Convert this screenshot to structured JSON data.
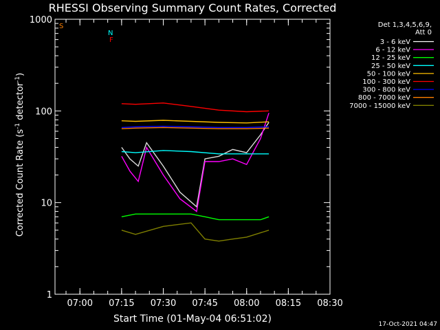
{
  "chart_data": {
    "type": "line",
    "title": "RHESSI Observing Summary Count Rates, Corrected",
    "xlabel": "Start Time (01-May-04 06:51:02)",
    "ylabel_main": "Corrected Count Rate (s",
    "ylabel_exp1": "-1",
    "ylabel_mid": " detector",
    "ylabel_exp2": "-1",
    "ylabel_end": ")",
    "y_scale": "log",
    "xlim": [
      "06:51:02",
      "08:30:00"
    ],
    "ylim": [
      1,
      1000
    ],
    "x_ticks": [
      "07:00",
      "07:15",
      "07:30",
      "07:45",
      "08:00",
      "08:15",
      "08:30"
    ],
    "y_ticks": [
      "1",
      "10",
      "100",
      "1000"
    ],
    "grid": false,
    "legend_position": "top-right",
    "legend_header": [
      "Det 1,3,4,5,6,9,",
      "Att 0"
    ],
    "series": [
      {
        "name": "3 - 6 keV",
        "color": "#000000",
        "times": [
          "07:15",
          "07:18",
          "07:21",
          "07:24",
          "07:30",
          "07:36",
          "07:42",
          "07:45",
          "07:50",
          "07:55",
          "08:00",
          "08:05",
          "08:08"
        ],
        "values": [
          40,
          30,
          25,
          45,
          25,
          13,
          9,
          30,
          32,
          38,
          35,
          55,
          75
        ]
      },
      {
        "name": "6 - 12 keV",
        "color": "#ff00ff",
        "times": [
          "07:15",
          "07:18",
          "07:21",
          "07:24",
          "07:30",
          "07:36",
          "07:42",
          "07:45",
          "07:50",
          "07:55",
          "08:00",
          "08:05",
          "08:08"
        ],
        "values": [
          32,
          22,
          17,
          40,
          20,
          11,
          8,
          28,
          28,
          30,
          26,
          50,
          95
        ]
      },
      {
        "name": "12 - 25 keV",
        "color": "#00ff00",
        "times": [
          "07:15",
          "07:20",
          "07:30",
          "07:40",
          "07:45",
          "07:50",
          "07:55",
          "08:00",
          "08:05",
          "08:08"
        ],
        "values": [
          7,
          7.5,
          7.5,
          7.5,
          7,
          6.5,
          6.5,
          6.5,
          6.5,
          7
        ]
      },
      {
        "name": "25 - 50 keV",
        "color": "#00ffff",
        "times": [
          "07:15",
          "07:20",
          "07:30",
          "07:40",
          "07:50",
          "08:00",
          "08:08"
        ],
        "values": [
          36,
          35,
          37,
          36,
          34,
          34,
          34
        ]
      },
      {
        "name": "50 - 100 keV",
        "color": "#ffc000",
        "times": [
          "07:15",
          "07:20",
          "07:30",
          "07:40",
          "07:50",
          "08:00",
          "08:08"
        ],
        "values": [
          78,
          77,
          79,
          77,
          75,
          74,
          76
        ]
      },
      {
        "name": "100 - 300 keV",
        "color": "#ff0000",
        "times": [
          "07:15",
          "07:20",
          "07:30",
          "07:40",
          "07:50",
          "08:00",
          "08:08"
        ],
        "values": [
          120,
          118,
          122,
          112,
          102,
          98,
          100
        ]
      },
      {
        "name": "300 - 800 keV",
        "color": "#0000ff",
        "times": [
          "07:15",
          "07:20",
          "07:30",
          "07:40",
          "07:50",
          "08:00",
          "08:08"
        ],
        "values": [
          66,
          67,
          68,
          67,
          66,
          66,
          67
        ]
      },
      {
        "name": "800 - 7000 keV",
        "color": "#ff8000",
        "times": [
          "07:15",
          "07:20",
          "07:30",
          "07:40",
          "07:50",
          "08:00",
          "08:08"
        ],
        "values": [
          64,
          65,
          66,
          65,
          64,
          64,
          65
        ]
      },
      {
        "name": "7000 - 15000 keV",
        "color": "#808000",
        "times": [
          "07:15",
          "07:20",
          "07:30",
          "07:40",
          "07:45",
          "07:50",
          "07:55",
          "08:00",
          "08:08"
        ],
        "values": [
          5,
          4.5,
          5.5,
          6,
          4,
          3.8,
          4,
          4.2,
          5
        ]
      }
    ],
    "flags": {
      "S": "S",
      "N": "N",
      "F": "F"
    }
  },
  "footer_stamp": "17-Oct-2021 04:47"
}
